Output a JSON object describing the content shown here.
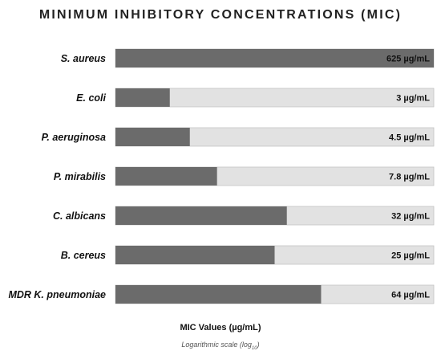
{
  "chart_data": {
    "type": "bar",
    "orientation": "horizontal",
    "title": "MINIMUM INHIBITORY CONCENTRATIONS (MIC)",
    "xlabel": "MIC Values (µg/mL)",
    "scale_note": "Logarithmic scale (log",
    "scale_note_sub": "10",
    "scale_note_end": ")",
    "x_scale": "log",
    "xlim": [
      1,
      625
    ],
    "grid": false,
    "legend": "none",
    "categories": [
      "S. aureus",
      "E. coli",
      "P. aeruginosa",
      "P. mirabilis",
      "C. albicans",
      "B. cereus",
      "MDR K. pneumoniae"
    ],
    "values": [
      625,
      3,
      4.5,
      7.8,
      32,
      25,
      64
    ],
    "value_labels": [
      "625 µg/mL",
      "3 µg/mL",
      "4.5 µg/mL",
      "7.8 µg/mL",
      "32 µg/mL",
      "25 µg/mL",
      "64 µg/mL"
    ],
    "colors": {
      "bar": "#6b6b6b",
      "track": "#e2e2e2",
      "track_border": "#c4c4c4"
    }
  }
}
